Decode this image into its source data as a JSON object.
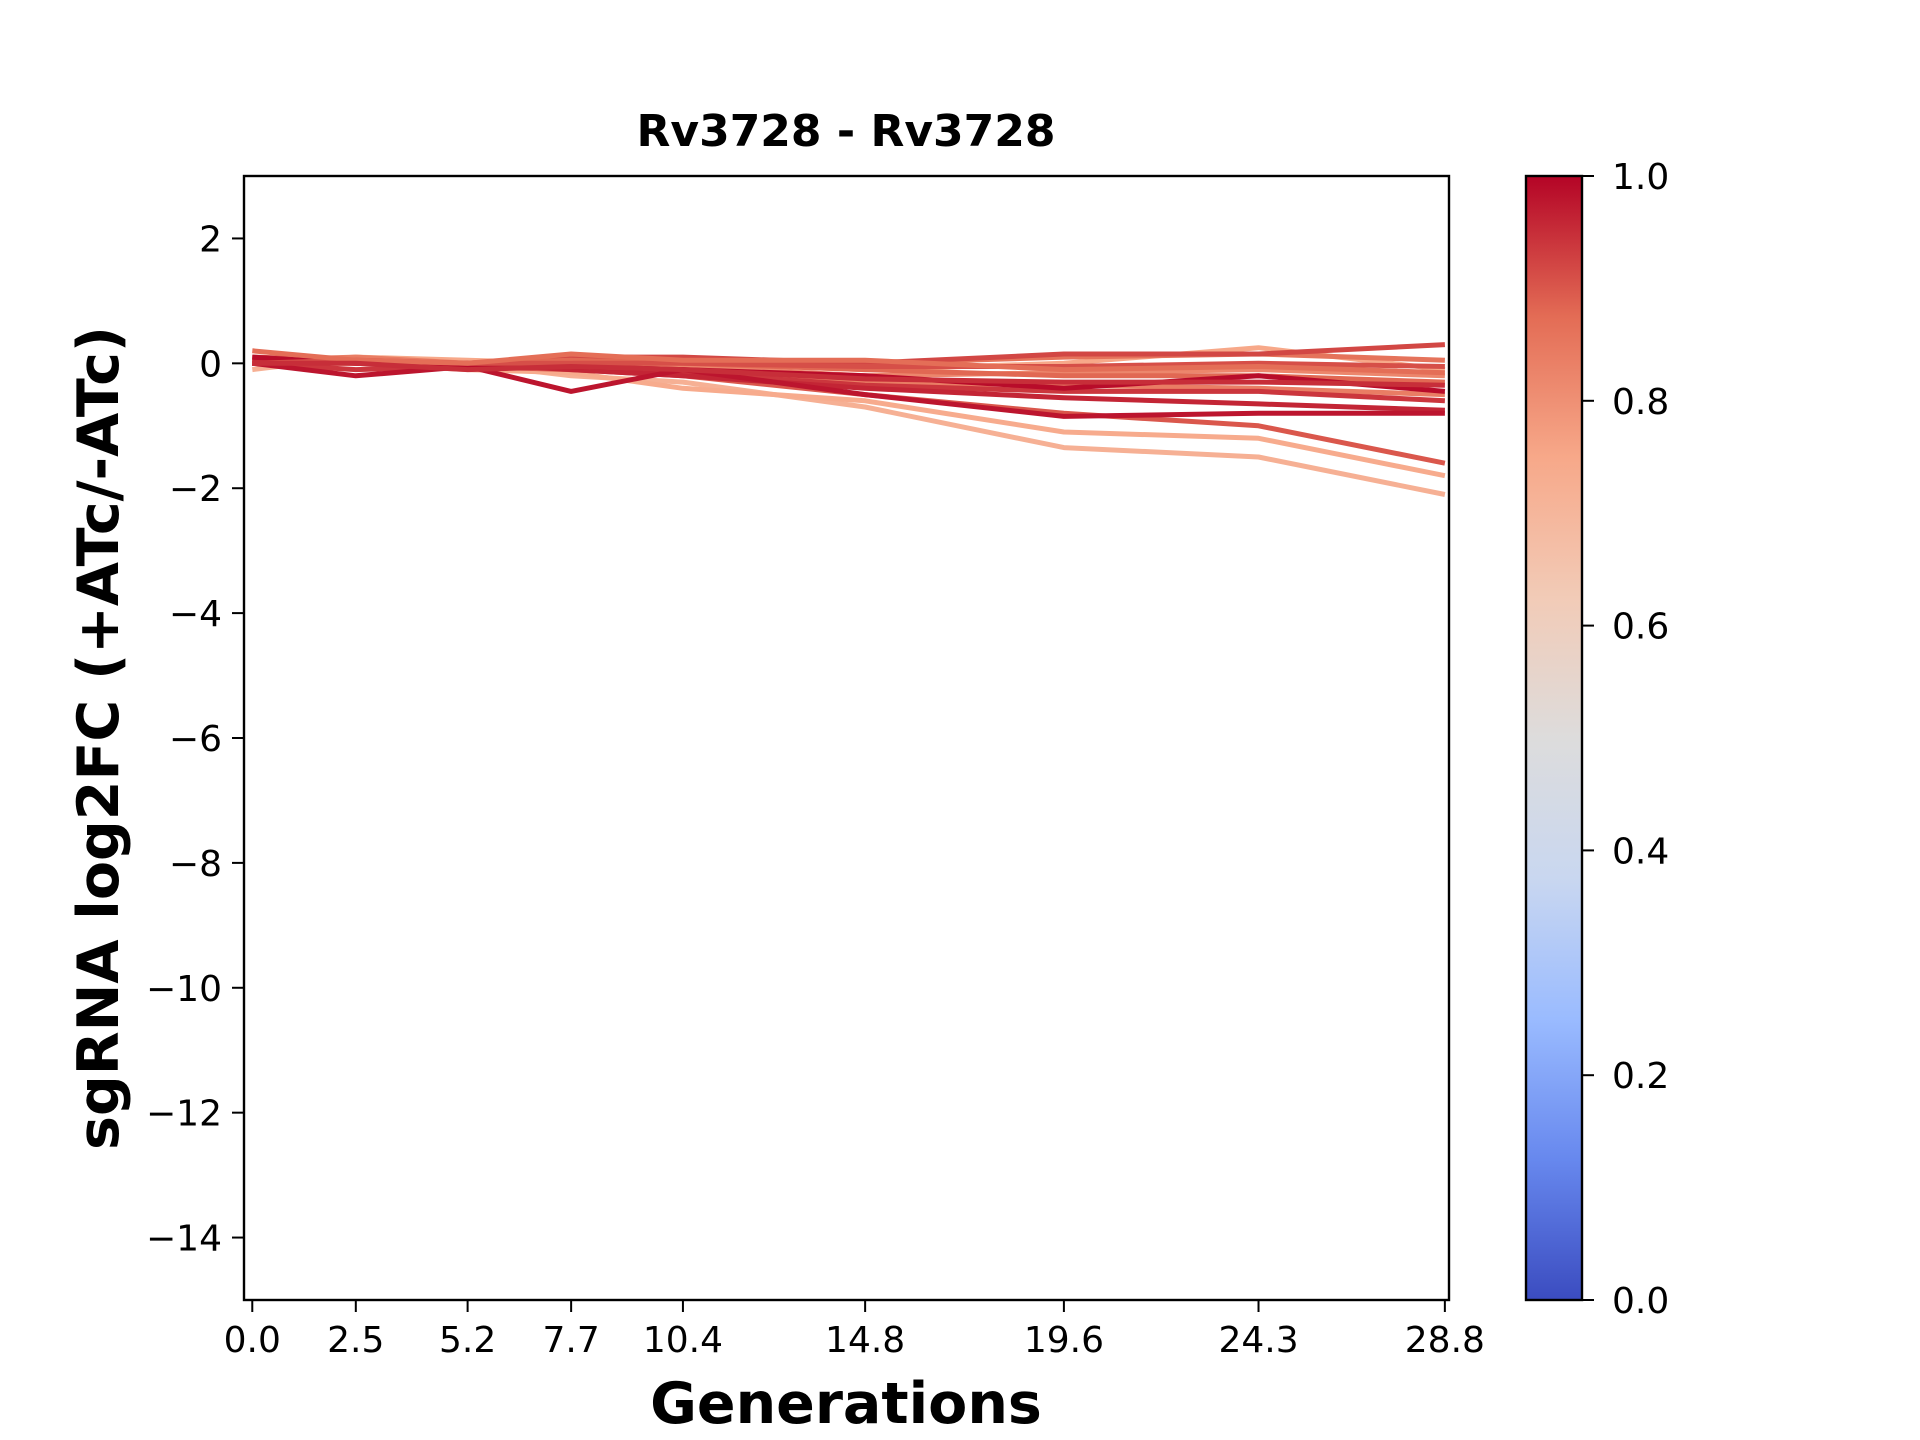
{
  "chart_data": {
    "type": "line",
    "title": "Rv3728 - Rv3728",
    "xlabel": "Generations",
    "ylabel": "sgRNA log2FC (+ATc/-ATc)",
    "x": [
      0.0,
      2.5,
      5.2,
      7.7,
      10.4,
      14.8,
      19.6,
      24.3,
      28.8
    ],
    "x_tick_labels": [
      "0.0",
      "2.5",
      "5.2",
      "7.7",
      "10.4",
      "14.8",
      "19.6",
      "24.3",
      "28.8"
    ],
    "xlim": [
      -0.2,
      28.9
    ],
    "ylim": [
      -15,
      3
    ],
    "y_ticks": [
      2,
      0,
      -2,
      -4,
      -6,
      -8,
      -10,
      -12,
      -14
    ],
    "y_tick_labels": [
      "2",
      "0",
      "−2",
      "−4",
      "−6",
      "−8",
      "−10",
      "−12",
      "−14"
    ],
    "grid": false,
    "colorbar": {
      "colormap": "coolwarm",
      "range": [
        0.0,
        1.0
      ],
      "tick_labels": [
        "0.0",
        "0.2",
        "0.4",
        "0.6",
        "0.8",
        "1.0"
      ],
      "ticks": [
        0.0,
        0.2,
        0.4,
        0.6,
        0.8,
        1.0
      ],
      "stops": [
        "#3b4cc0",
        "#6788ee",
        "#9abbff",
        "#c9d7f0",
        "#dddcdc",
        "#f2cbb7",
        "#f7a889",
        "#e36c55",
        "#b40426"
      ]
    },
    "series": [
      {
        "color_value": 0.72,
        "values": [
          -0.1,
          0.1,
          0.0,
          -0.2,
          -0.3,
          -0.7,
          -1.35,
          -1.5,
          -2.1
        ]
      },
      {
        "color_value": 0.74,
        "values": [
          0.0,
          0.0,
          -0.1,
          -0.15,
          -0.4,
          -0.6,
          -1.1,
          -1.2,
          -1.8
        ]
      },
      {
        "color_value": 0.9,
        "values": [
          0.1,
          0.05,
          -0.05,
          -0.1,
          -0.2,
          -0.5,
          -0.8,
          -1.0,
          -1.6
        ]
      },
      {
        "color_value": 0.75,
        "values": [
          0.0,
          0.1,
          0.05,
          0.0,
          0.0,
          -0.1,
          0.0,
          0.25,
          -0.1
        ]
      },
      {
        "color_value": 0.86,
        "values": [
          0.05,
          0.0,
          0.0,
          0.1,
          0.05,
          0.0,
          0.1,
          0.15,
          0.05
        ]
      },
      {
        "color_value": 0.92,
        "values": [
          0.0,
          0.05,
          0.0,
          0.1,
          0.1,
          0.0,
          0.15,
          0.15,
          0.3
        ]
      },
      {
        "color_value": 0.82,
        "values": [
          0.0,
          0.0,
          -0.05,
          0.0,
          -0.05,
          -0.2,
          -0.15,
          -0.1,
          -0.2
        ]
      },
      {
        "color_value": 0.88,
        "values": [
          0.1,
          0.0,
          0.0,
          0.05,
          0.0,
          -0.1,
          -0.2,
          -0.2,
          -0.3
        ]
      },
      {
        "color_value": 0.84,
        "values": [
          0.05,
          0.1,
          0.0,
          0.0,
          -0.1,
          -0.3,
          -0.35,
          -0.4,
          -0.5
        ]
      },
      {
        "color_value": 0.94,
        "values": [
          0.0,
          -0.1,
          -0.05,
          -0.05,
          -0.15,
          -0.35,
          -0.45,
          -0.45,
          -0.6
        ]
      },
      {
        "color_value": 0.96,
        "values": [
          0.05,
          0.0,
          0.0,
          -0.1,
          -0.2,
          -0.4,
          -0.55,
          -0.65,
          -0.75
        ]
      },
      {
        "color_value": 0.98,
        "values": [
          0.0,
          -0.2,
          -0.05,
          -0.45,
          -0.1,
          -0.5,
          -0.85,
          -0.8,
          -0.8
        ]
      },
      {
        "color_value": 0.99,
        "values": [
          0.1,
          0.0,
          -0.05,
          -0.05,
          -0.1,
          -0.2,
          -0.4,
          -0.2,
          -0.45
        ]
      },
      {
        "color_value": 0.91,
        "values": [
          0.0,
          0.05,
          0.0,
          0.0,
          0.0,
          -0.05,
          -0.05,
          0.0,
          -0.05
        ]
      },
      {
        "color_value": 0.87,
        "values": [
          0.2,
          0.05,
          0.0,
          0.15,
          0.05,
          0.05,
          -0.1,
          -0.05,
          -0.15
        ]
      },
      {
        "color_value": 0.95,
        "values": [
          0.0,
          0.0,
          -0.1,
          -0.05,
          -0.1,
          -0.25,
          -0.3,
          -0.3,
          -0.35
        ]
      }
    ]
  }
}
